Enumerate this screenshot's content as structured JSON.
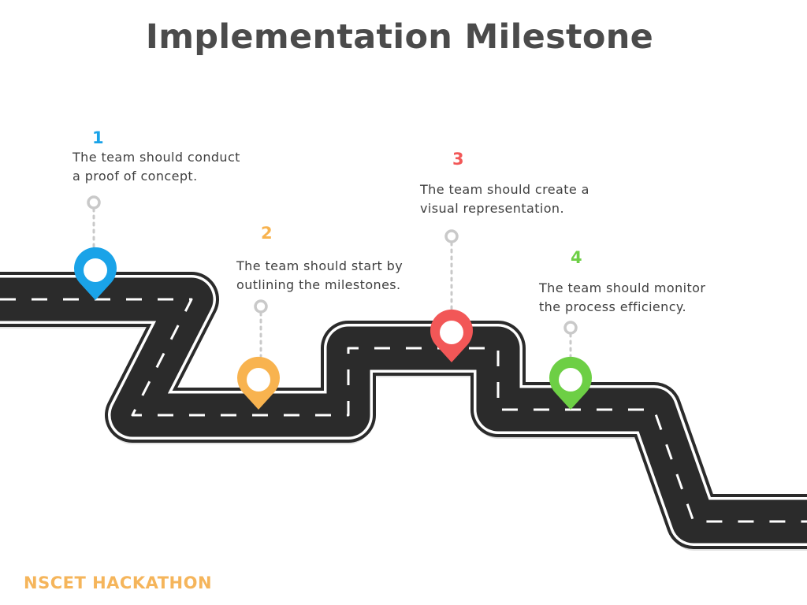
{
  "title": "Implementation Milestone",
  "milestones": [
    {
      "number": "1",
      "line1": "The team should conduct",
      "line2": "a proof of concept.",
      "color": "#1aa3e8"
    },
    {
      "number": "2",
      "line1": "The team should start by",
      "line2": "outlining the milestones.",
      "color": "#f8b34f"
    },
    {
      "number": "3",
      "line1": "The team should create a",
      "line2": "visual representation.",
      "color": "#f25757"
    },
    {
      "number": "4",
      "line1": "The team should monitor",
      "line2": "the process efficiency.",
      "color": "#6dcf45"
    }
  ],
  "footer": "NSCET HACKATHON",
  "colors": {
    "road": "#2b2b2b",
    "road_edge": "#ffffff",
    "shadow": "#e1e1e1",
    "connector": "#c9c9c9",
    "title": "#4b4b4b",
    "footer": "#f5b55b"
  },
  "icons": [
    "location-pin-icon"
  ]
}
